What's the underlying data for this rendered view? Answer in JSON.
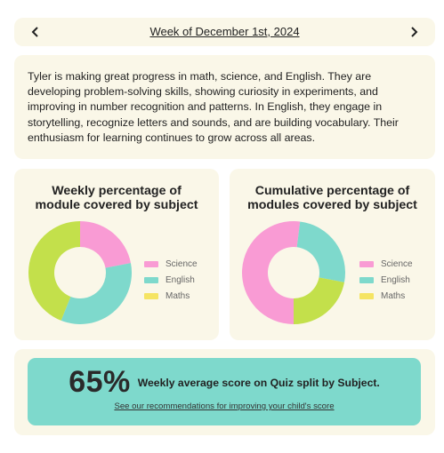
{
  "week": {
    "label": "Week of December 1st, 2024",
    "prev_icon": "chevron-left-icon",
    "next_icon": "chevron-right-icon"
  },
  "summary": {
    "text": "Tyler is making great progress in math, science, and English. They are developing problem-solving skills, showing curiosity in experiments, and improving in number recognition and patterns. In English, they engage in storytelling, recognize letters and sounds, and are building vocabulary. Their enthusiasm for learning continues to grow across all areas."
  },
  "colors": {
    "science": "#f99bd4",
    "english": "#7ed9cc",
    "maths": "#c3e04b",
    "maths_legend": "#f5e463",
    "card_bg": "#faf7e8"
  },
  "chart_data": [
    {
      "type": "pie",
      "title": "Weekly percentage of module covered by subject",
      "title_lines": [
        "Weekly percentage of",
        "module covered by subject"
      ],
      "categories": [
        "Science",
        "English",
        "Maths"
      ],
      "values": [
        22,
        34,
        44
      ],
      "start_angle": 270,
      "legend": "right"
    },
    {
      "type": "pie",
      "title": "Cumulative percentage of modules covered by subject",
      "title_lines": [
        "Cumulative percentage of",
        "modules covered by subject"
      ],
      "categories": [
        "Science",
        "English",
        "Maths"
      ],
      "values": [
        52,
        26,
        22
      ],
      "start_angle": 90,
      "legend": "right"
    }
  ],
  "legend": {
    "items": [
      "Science",
      "English",
      "Maths"
    ]
  },
  "score": {
    "value": "65%",
    "caption": "Weekly average score on Quiz split by Subject.",
    "link": "See our recommendations for improving your child's score"
  }
}
